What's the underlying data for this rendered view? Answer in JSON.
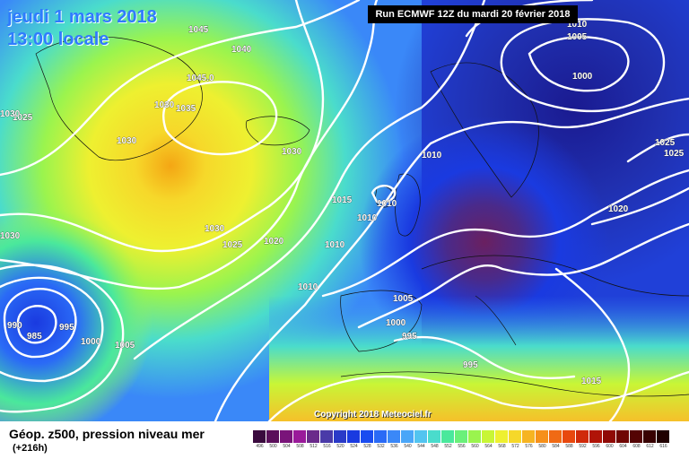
{
  "map": {
    "date_line1": "jeudi 1 mars 2018",
    "date_line2": "13:00 locale",
    "run_info": "Run ECMWF 12Z du mardi 20 février 2018",
    "copyright": "Copyright 2018 Meteociel.fr"
  },
  "legend": {
    "title": "Géop. z500, pression niveau mer",
    "subtitle": "(+216h)",
    "scale_labels": [
      "496",
      "500",
      "504",
      "508",
      "512",
      "516",
      "520",
      "524",
      "528",
      "532",
      "536",
      "540",
      "544",
      "548",
      "552",
      "556",
      "560",
      "564",
      "568",
      "572",
      "576",
      "580",
      "584",
      "588",
      "592",
      "596",
      "600",
      "604",
      "608",
      "612",
      "616"
    ],
    "scale_colors": [
      "#3a0a3e",
      "#5a0f5a",
      "#7a147a",
      "#9a1a9a",
      "#6a2a8a",
      "#4a3aa8",
      "#2a3ac8",
      "#1a3ae0",
      "#1a4cf0",
      "#2a6af6",
      "#3a88f8",
      "#4aa6f8",
      "#52c4f0",
      "#4adccc",
      "#4ae89c",
      "#6af07a",
      "#9af44e",
      "#c8f636",
      "#eef030",
      "#f6d82a",
      "#f6b422",
      "#f6901a",
      "#f06a14",
      "#e8480e",
      "#d02a0a",
      "#b01408",
      "#900a06",
      "#700604",
      "#540404",
      "#380202",
      "#200000"
    ]
  },
  "isobars": [
    "1045",
    "1040",
    "1045.0",
    "1035",
    "1030",
    "1030",
    "1030",
    "1020",
    "1025",
    "1030",
    "1025",
    "1030",
    "1030",
    "1025",
    "1020",
    "1015",
    "1010",
    "1010",
    "1010",
    "1010",
    "1010",
    "1005",
    "1000",
    "995",
    "995",
    "990",
    "985",
    "995",
    "1000",
    "1005",
    "1010",
    "1005",
    "1000",
    "1025",
    "1025",
    "1020",
    "1015"
  ],
  "colors": {
    "accent_text": "#2f7bff",
    "isobar": "#ffffff"
  }
}
